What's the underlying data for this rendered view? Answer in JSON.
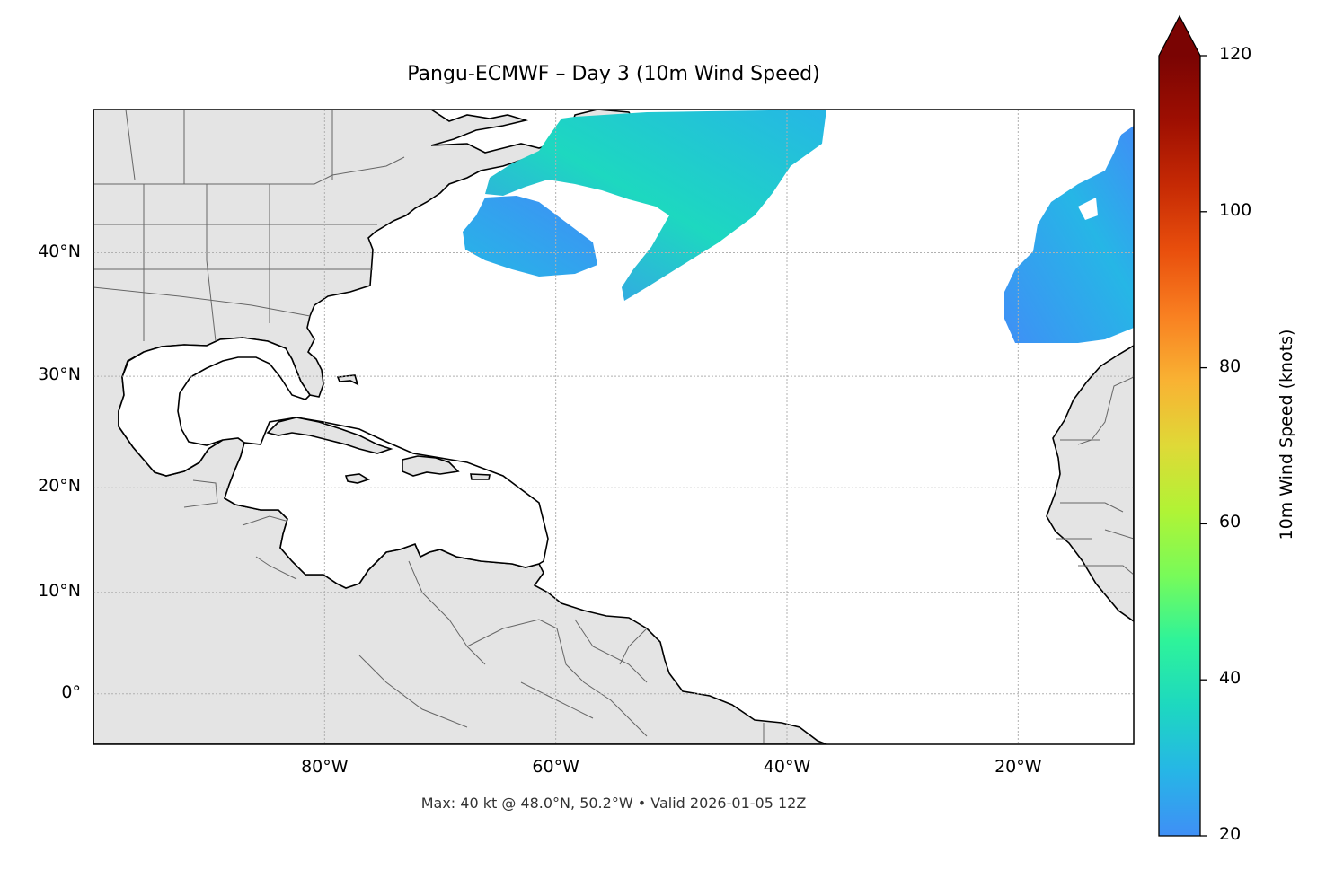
{
  "title": "Pangu-ECMWF – Day 3 (10m Wind Speed)",
  "footer": "Max: 40 kt @ 48.0°N, 50.2°W • Valid 2026-01-05 12Z",
  "map": {
    "extent": {
      "lon_min": -100,
      "lon_max": -10,
      "lat_min": -5,
      "lat_max": 50
    },
    "land_color": "#e4e4e4",
    "ocean_color": "#ffffff",
    "grid": true,
    "lat_ticks": [
      {
        "value": 40,
        "label": "40°N"
      },
      {
        "value": 30,
        "label": "30°N"
      },
      {
        "value": 20,
        "label": "20°N"
      },
      {
        "value": 10,
        "label": "10°N"
      },
      {
        "value": 0,
        "label": "0°"
      }
    ],
    "lon_ticks": [
      {
        "value": -80,
        "label": "80°W"
      },
      {
        "value": -60,
        "label": "60°W"
      },
      {
        "value": -40,
        "label": "40°W"
      },
      {
        "value": -20,
        "label": "20°W"
      }
    ]
  },
  "colorbar": {
    "label": "10m Wind Speed (knots)",
    "min": 20,
    "max": 120,
    "ticks": [
      "20",
      "40",
      "60",
      "80",
      "100",
      "120"
    ],
    "extend": "max",
    "colors": [
      "#3f8ff6",
      "#26b6e6",
      "#1dd8c0",
      "#2ef39a",
      "#78fb59",
      "#b1f335",
      "#dfd937",
      "#f9b233",
      "#f98021",
      "#e94f0d",
      "#c62a04",
      "#9e0f02",
      "#7a0403"
    ]
  },
  "wind_fields": [
    {
      "name": "newfoundland-jet",
      "speed_kt": 40
    },
    {
      "name": "gulf-stream-patch",
      "speed_kt": 25
    },
    {
      "name": "eastern-atlantic-low",
      "speed_kt": 24
    }
  ]
}
